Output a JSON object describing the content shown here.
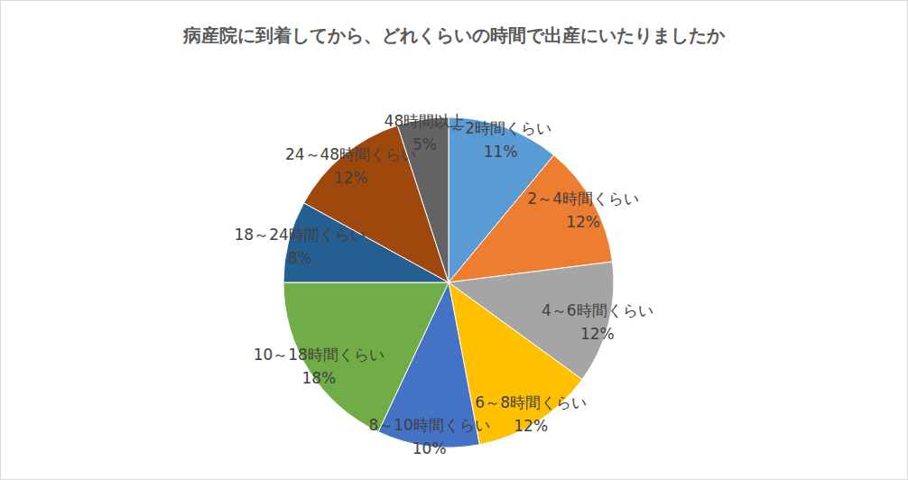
{
  "chart_data": {
    "type": "pie",
    "title": "病産院に到着してから、どれくらいの時間で出産にいたりましたか",
    "categories": [
      "～2時間くらい",
      "2～4時間くらい",
      "4～6時間くらい",
      "6～8時間くらい",
      "8～10時間くらい",
      "10～18時間くらい",
      "18～24時間くらい",
      "24～48時間くらい",
      "48時間以上"
    ],
    "values": [
      11,
      12,
      12,
      12,
      10,
      18,
      8,
      12,
      5
    ],
    "value_labels": [
      "11%",
      "12%",
      "12%",
      "12%",
      "10%",
      "18%",
      "8%",
      "12%",
      "5%"
    ],
    "colors": [
      "#5b9bd5",
      "#ed7d31",
      "#a5a5a5",
      "#ffc000",
      "#4472c4",
      "#70ad47",
      "#255e91",
      "#9e480e",
      "#636363"
    ],
    "data_labels": true
  }
}
